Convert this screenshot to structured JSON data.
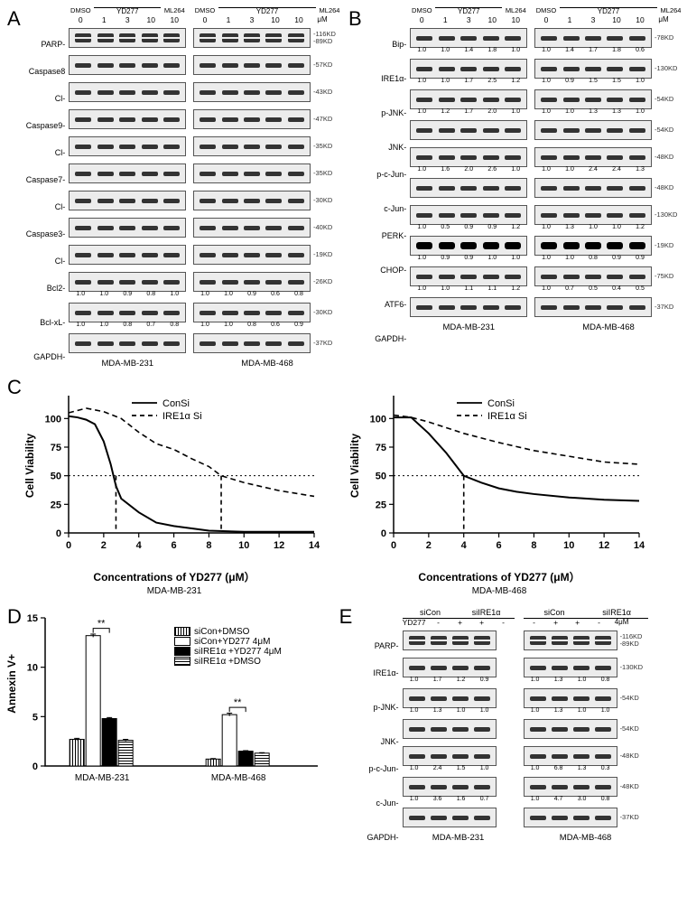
{
  "panelA": {
    "label": "A",
    "cond_header": {
      "dmso": "DMSO",
      "compound": "YD277",
      "other": "ML264",
      "doses": [
        "0",
        "1",
        "3",
        "10",
        "10"
      ],
      "unit": "μM"
    },
    "rows": [
      {
        "name": "PARP-",
        "kd": [
          "-116KD",
          "-89KD"
        ]
      },
      {
        "name": "Caspase8",
        "kd": [
          "-57KD"
        ]
      },
      {
        "name": "Cl-",
        "kd": [
          "-43KD"
        ]
      },
      {
        "name": "Caspase9-",
        "kd": [
          "-47KD"
        ]
      },
      {
        "name": "Cl-",
        "kd": [
          "-35KD"
        ]
      },
      {
        "name": "Caspase7-",
        "kd": [
          "-35KD"
        ]
      },
      {
        "name": "Cl-",
        "kd": [
          "-30KD"
        ]
      },
      {
        "name": "Caspase3-",
        "kd": [
          "-40KD"
        ]
      },
      {
        "name": "Cl-",
        "kd": [
          "-19KD"
        ]
      },
      {
        "name": "Bcl2-",
        "kd": [
          "-26KD"
        ],
        "nums_231": [
          "1.0",
          "1.0",
          "0.9",
          "0.8",
          "1.0"
        ],
        "nums_468": [
          "1.0",
          "1.0",
          "0.9",
          "0.6",
          "0.8"
        ]
      },
      {
        "name": "Bcl-xL-",
        "kd": [
          "-30KD"
        ],
        "nums_231": [
          "1.0",
          "1.0",
          "0.8",
          "0.7",
          "0.8"
        ],
        "nums_468": [
          "1.0",
          "1.0",
          "0.8",
          "0.6",
          "0.9"
        ]
      },
      {
        "name": "GAPDH-",
        "kd": [
          "-37KD"
        ]
      }
    ],
    "captions": [
      "MDA-MB-231",
      "MDA-MB-468"
    ]
  },
  "panelB": {
    "label": "B",
    "cond_header": {
      "dmso": "DMSO",
      "compound": "YD277",
      "other": "ML264",
      "doses": [
        "0",
        "1",
        "3",
        "10",
        "10"
      ],
      "unit": "μM"
    },
    "rows": [
      {
        "name": "Bip-",
        "kd": [
          "-78KD"
        ],
        "nums_231": [
          "1.0",
          "1.0",
          "1.4",
          "1.8",
          "1.0"
        ],
        "nums_468": [
          "1.0",
          "1.4",
          "1.7",
          "1.8",
          "0.6"
        ]
      },
      {
        "name": "IRE1α-",
        "kd": [
          "-130KD"
        ],
        "nums_231": [
          "1.0",
          "1.0",
          "1.7",
          "2.5",
          "1.2"
        ],
        "nums_468": [
          "1.0",
          "0.9",
          "1.5",
          "1.5",
          "1.0"
        ]
      },
      {
        "name": "p-JNK-",
        "kd": [
          "-54KD"
        ],
        "nums_231": [
          "1.0",
          "1.2",
          "1.7",
          "2.0",
          "1.0"
        ],
        "nums_468": [
          "1.0",
          "1.0",
          "1.3",
          "1.3",
          "1.0"
        ]
      },
      {
        "name": "JNK-",
        "kd": [
          "-54KD"
        ]
      },
      {
        "name": "p-c-Jun-",
        "kd": [
          "-48KD"
        ],
        "nums_231": [
          "1.0",
          "1.6",
          "2.0",
          "2.6",
          "1.0"
        ],
        "nums_468": [
          "1.0",
          "1.0",
          "2.4",
          "2.4",
          "1.3"
        ]
      },
      {
        "name": "c-Jun-",
        "kd": [
          "-48KD"
        ]
      },
      {
        "name": "PERK-",
        "kd": [
          "-130KD"
        ],
        "nums_231": [
          "1.0",
          "0.5",
          "0.9",
          "0.9",
          "1.2"
        ],
        "nums_468": [
          "1.0",
          "1.3",
          "1.0",
          "1.0",
          "1.2"
        ]
      },
      {
        "name": "CHOP-",
        "kd": [
          "-19KD"
        ],
        "nums_231": [
          "1.0",
          "0.9",
          "0.9",
          "1.0",
          "1.0"
        ],
        "nums_468": [
          "1.0",
          "1.0",
          "0.8",
          "0.9",
          "0.9"
        ]
      },
      {
        "name": "ATF6-",
        "kd": [
          "-75KD"
        ],
        "nums_231": [
          "1.0",
          "1.0",
          "1.1",
          "1.1",
          "1.2"
        ],
        "nums_468": [
          "1.0",
          "0.7",
          "0.5",
          "0.4",
          "0.5"
        ]
      },
      {
        "name": "GAPDH-",
        "kd": [
          "-37KD"
        ]
      }
    ],
    "captions": [
      "MDA-MB-231",
      "MDA-MB-468"
    ]
  },
  "panelC": {
    "label": "C",
    "ylabel": "Cell Viability",
    "xlabel": "Concentrations of YD277 (μM）",
    "ylim": [
      0,
      120
    ],
    "ytick_step": 25,
    "xlim": [
      0,
      14
    ],
    "xtick_step": 2,
    "legend": [
      "ConSi",
      "IRE1α Si"
    ],
    "charts": [
      {
        "caption": "MDA-MB-231",
        "consi": [
          [
            0,
            102
          ],
          [
            0.5,
            101
          ],
          [
            1,
            99
          ],
          [
            1.5,
            95
          ],
          [
            2,
            80
          ],
          [
            2.4,
            60
          ],
          [
            2.7,
            41
          ],
          [
            3,
            30
          ],
          [
            4,
            18
          ],
          [
            5,
            9
          ],
          [
            6,
            6
          ],
          [
            8,
            2
          ],
          [
            10,
            1
          ],
          [
            12,
            1
          ],
          [
            14,
            1
          ]
        ],
        "ire1si": [
          [
            0,
            105
          ],
          [
            1,
            109
          ],
          [
            2,
            106
          ],
          [
            3,
            100
          ],
          [
            4,
            88
          ],
          [
            5,
            78
          ],
          [
            6,
            73
          ],
          [
            7,
            65
          ],
          [
            8,
            58
          ],
          [
            8.7,
            50
          ],
          [
            10,
            44
          ],
          [
            12,
            37
          ],
          [
            14,
            32
          ]
        ],
        "vlines": [
          2.7,
          8.7
        ]
      },
      {
        "caption": "MDA-MB-468",
        "consi": [
          [
            0,
            101
          ],
          [
            1,
            101
          ],
          [
            2,
            87
          ],
          [
            3,
            70
          ],
          [
            3.5,
            60
          ],
          [
            4,
            50
          ],
          [
            5,
            44
          ],
          [
            6,
            39
          ],
          [
            7,
            36
          ],
          [
            8,
            34
          ],
          [
            10,
            31
          ],
          [
            12,
            29
          ],
          [
            14,
            28
          ]
        ],
        "ire1si": [
          [
            0,
            103
          ],
          [
            1,
            101
          ],
          [
            2,
            97
          ],
          [
            3,
            92
          ],
          [
            4,
            87
          ],
          [
            5,
            83
          ],
          [
            6,
            79
          ],
          [
            8,
            72
          ],
          [
            10,
            67
          ],
          [
            12,
            62
          ],
          [
            14,
            60
          ]
        ],
        "vlines": [
          4.0
        ]
      }
    ],
    "colors": {
      "consi": "#000000",
      "ire1si": "#000000",
      "hline": "#000000"
    },
    "line_widths": {
      "consi": 2.0,
      "ire1si": 1.6
    },
    "dash": {
      "ire1si": "6,4",
      "hline": "2,3",
      "vline": "5,4"
    }
  },
  "panelD": {
    "label": "D",
    "ylabel": "Annexin V+",
    "ylim": [
      0,
      15
    ],
    "ytick_step": 5,
    "legend": [
      {
        "pattern": "vstripe",
        "text": "siCon+DMSO"
      },
      {
        "pattern": "white",
        "text": "siCon+YD277 4μM"
      },
      {
        "pattern": "black",
        "text": "siIRE1α +YD277 4μM"
      },
      {
        "pattern": "hstripe",
        "text": "siIRE1α +DMSO"
      }
    ],
    "groups": [
      {
        "name": "MDA-MB-231",
        "values": [
          2.7,
          13.2,
          4.8,
          2.6
        ],
        "err": [
          0.1,
          0.15,
          0.1,
          0.1
        ],
        "sig": "**"
      },
      {
        "name": "MDA-MB-468",
        "values": [
          0.7,
          5.2,
          1.5,
          1.3
        ],
        "err": [
          0.05,
          0.15,
          0.05,
          0.05
        ],
        "sig": "**"
      }
    ],
    "bar_colors": {
      "vstripe": "repeating-linear-gradient(90deg,#000 0 1px,transparent 1px 3px)",
      "white": "#ffffff",
      "black": "#000000",
      "hstripe": "repeating-linear-gradient(0deg,#000 0 1px,transparent 1px 3px)"
    },
    "bar_border": "#000000"
  },
  "panelE": {
    "label": "E",
    "col_headers": {
      "siCon": "siCon",
      "siIRE": "siIRE1α"
    },
    "sub_header": {
      "compound": "YD277",
      "conds": [
        "-",
        "+",
        "+",
        "-"
      ],
      "unit": "4μM"
    },
    "rows": [
      {
        "name": "PARP-",
        "kd": [
          "-116KD",
          "-89KD"
        ]
      },
      {
        "name": "IRE1α-",
        "kd": [
          "-130KD"
        ],
        "nums_231": [
          "1.0",
          "1.7",
          "1.2",
          "0.9"
        ],
        "nums_468": [
          "1.0",
          "1.3",
          "1.0",
          "0.8"
        ]
      },
      {
        "name": "p-JNK-",
        "kd": [
          "-54KD"
        ],
        "nums_231": [
          "1.0",
          "1.3",
          "1.0",
          "1.0"
        ],
        "nums_468": [
          "1.0",
          "1.3",
          "1.0",
          "1.0"
        ]
      },
      {
        "name": "JNK-",
        "kd": [
          "-54KD"
        ]
      },
      {
        "name": "p-c-Jun-",
        "kd": [
          "-48KD"
        ],
        "nums_231": [
          "1.0",
          "2.4",
          "1.5",
          "1.0"
        ],
        "nums_468": [
          "1.0",
          "6.8",
          "1.3",
          "0.3"
        ]
      },
      {
        "name": "c-Jun-",
        "kd": [
          "-48KD"
        ],
        "nums_231": [
          "1.0",
          "3.6",
          "1.6",
          "0.7"
        ],
        "nums_468": [
          "1.0",
          "4.7",
          "3.0",
          "0.8"
        ]
      },
      {
        "name": "GAPDH-",
        "kd": [
          "-37KD"
        ]
      }
    ],
    "captions": [
      "MDA-MB-231",
      "MDA-MB-468"
    ]
  }
}
